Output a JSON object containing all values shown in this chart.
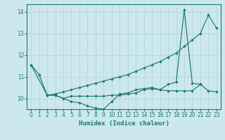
{
  "xlabel": "Humidex (Indice chaleur)",
  "bg_color": "#cce8ed",
  "grid_color": "#b8d8de",
  "line_color": "#1a7a6e",
  "xlim": [
    -0.5,
    23.5
  ],
  "ylim": [
    9.5,
    14.35
  ],
  "yticks": [
    10,
    11,
    12,
    13,
    14
  ],
  "xticks": [
    0,
    1,
    2,
    3,
    4,
    5,
    6,
    7,
    8,
    9,
    10,
    11,
    12,
    13,
    14,
    15,
    16,
    17,
    18,
    19,
    20,
    21,
    22,
    23
  ],
  "series": [
    {
      "x": [
        0,
        1,
        2,
        3,
        4,
        5,
        6,
        7,
        8,
        9,
        10,
        11,
        12,
        13,
        14,
        15,
        16,
        17,
        18,
        19,
        20,
        21
      ],
      "y": [
        11.55,
        11.1,
        10.15,
        10.15,
        10.0,
        9.85,
        9.8,
        9.65,
        9.55,
        9.5,
        9.85,
        10.2,
        10.25,
        10.4,
        10.45,
        10.5,
        10.4,
        10.65,
        10.75,
        14.1,
        10.7,
        10.65
      ]
    },
    {
      "x": [
        0,
        2,
        3,
        4,
        5,
        6,
        7,
        8,
        9,
        10,
        11,
        12,
        13,
        14,
        15,
        16,
        17,
        18,
        19,
        20,
        21,
        22,
        23
      ],
      "y": [
        11.55,
        10.15,
        10.2,
        10.3,
        10.4,
        10.5,
        10.6,
        10.7,
        10.8,
        10.9,
        11.0,
        11.1,
        11.25,
        11.4,
        11.55,
        11.7,
        11.9,
        12.1,
        12.4,
        12.7,
        13.0,
        13.85,
        13.25
      ]
    },
    {
      "x": [
        2,
        3,
        4,
        5,
        6,
        7,
        8,
        9,
        10,
        11,
        12,
        13,
        14,
        15,
        16,
        17,
        18,
        19,
        20,
        21,
        22,
        23
      ],
      "y": [
        10.15,
        10.15,
        10.0,
        10.1,
        10.1,
        10.1,
        10.1,
        10.1,
        10.15,
        10.15,
        10.2,
        10.25,
        10.4,
        10.45,
        10.4,
        10.35,
        10.35,
        10.35,
        10.35,
        10.65,
        10.35,
        10.3
      ]
    }
  ]
}
